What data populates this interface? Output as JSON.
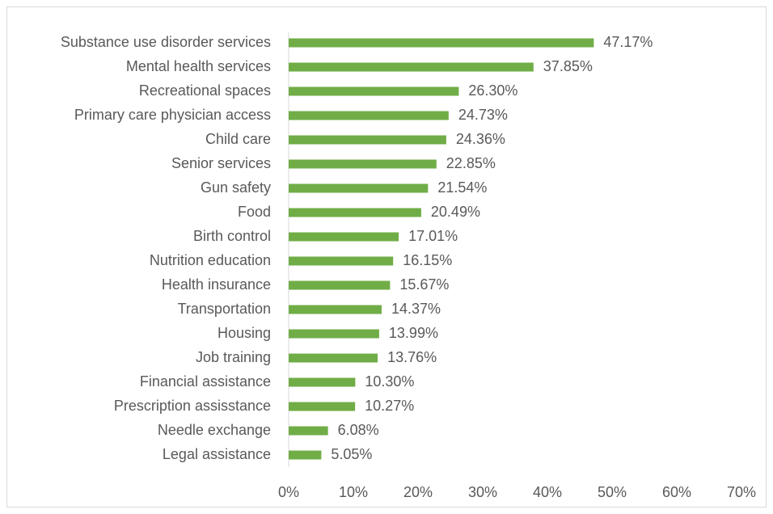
{
  "chart_data": {
    "type": "barh",
    "categories": [
      "Substance use disorder services",
      "Mental health services",
      "Recreational spaces",
      "Primary care physician access",
      "Child care",
      "Senior services",
      "Gun safety",
      "Food",
      "Birth control",
      "Nutrition education",
      "Health insurance",
      "Transportation",
      "Housing",
      "Job training",
      "Financial assistance",
      "Prescription assisstance",
      "Needle exchange",
      "Legal assistance"
    ],
    "values": [
      47.17,
      37.85,
      26.3,
      24.73,
      24.36,
      22.85,
      21.54,
      20.49,
      17.01,
      16.15,
      15.67,
      14.37,
      13.99,
      13.76,
      10.3,
      10.27,
      6.08,
      5.05
    ],
    "value_labels": [
      "47.17%",
      "37.85%",
      "26.30%",
      "24.73%",
      "24.36%",
      "22.85%",
      "21.54%",
      "20.49%",
      "17.01%",
      "16.15%",
      "15.67%",
      "14.37%",
      "13.99%",
      "13.76%",
      "10.30%",
      "10.27%",
      "6.08%",
      "5.05%"
    ],
    "color": "#70ad47",
    "xlim": [
      0,
      70
    ],
    "xticks": [
      {
        "value": 0,
        "label": "0%"
      },
      {
        "value": 10,
        "label": "10%"
      },
      {
        "value": 20,
        "label": "20%"
      },
      {
        "value": 30,
        "label": "30%"
      },
      {
        "value": 40,
        "label": "40%"
      },
      {
        "value": 50,
        "label": "50%"
      },
      {
        "value": 60,
        "label": "60%"
      },
      {
        "value": 70,
        "label": "70%"
      }
    ],
    "grid": false
  }
}
